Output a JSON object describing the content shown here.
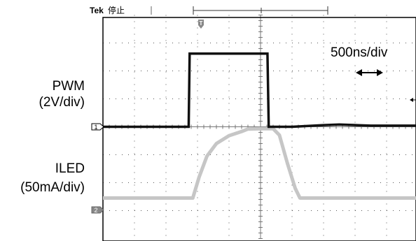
{
  "header": {
    "brand": "Tek",
    "status": "停止",
    "trigger_marker": "T"
  },
  "labels": {
    "pwm_name": "PWM",
    "pwm_scale": "(2V/div)",
    "iled_name": "ILED",
    "iled_scale": "(50mA/div)",
    "timebase": "500ns/div"
  },
  "channels": {
    "ch1": "1",
    "ch2": "2"
  },
  "colors": {
    "ch1": "#111111",
    "ch2": "#c6c6c6",
    "grid": "#555555",
    "frame": "#000000"
  },
  "chart_data": {
    "type": "line",
    "grid": true,
    "xlim": [
      0,
      10
    ],
    "ylim": [
      -4,
      4
    ],
    "series": [
      {
        "name": "PWM",
        "x": [
          0,
          2.72,
          2.75,
          5.22,
          5.26,
          6.0,
          7.0,
          7.5,
          8.5,
          10
        ],
        "y": [
          0.0,
          0.0,
          2.62,
          2.62,
          0.0,
          0.0,
          0.06,
          0.08,
          0.04,
          0.04
        ]
      },
      {
        "name": "ILED",
        "x": [
          0,
          2.85,
          3.05,
          3.3,
          3.6,
          4.0,
          4.4,
          4.6,
          5.0,
          5.4,
          5.6,
          5.85,
          6.1,
          6.25,
          6.4,
          10
        ],
        "y": [
          -2.55,
          -2.55,
          -1.8,
          -1.05,
          -0.6,
          -0.32,
          -0.17,
          -0.08,
          -0.07,
          -0.07,
          -0.3,
          -1.3,
          -2.2,
          -2.55,
          -2.55,
          -2.55
        ]
      }
    ]
  }
}
